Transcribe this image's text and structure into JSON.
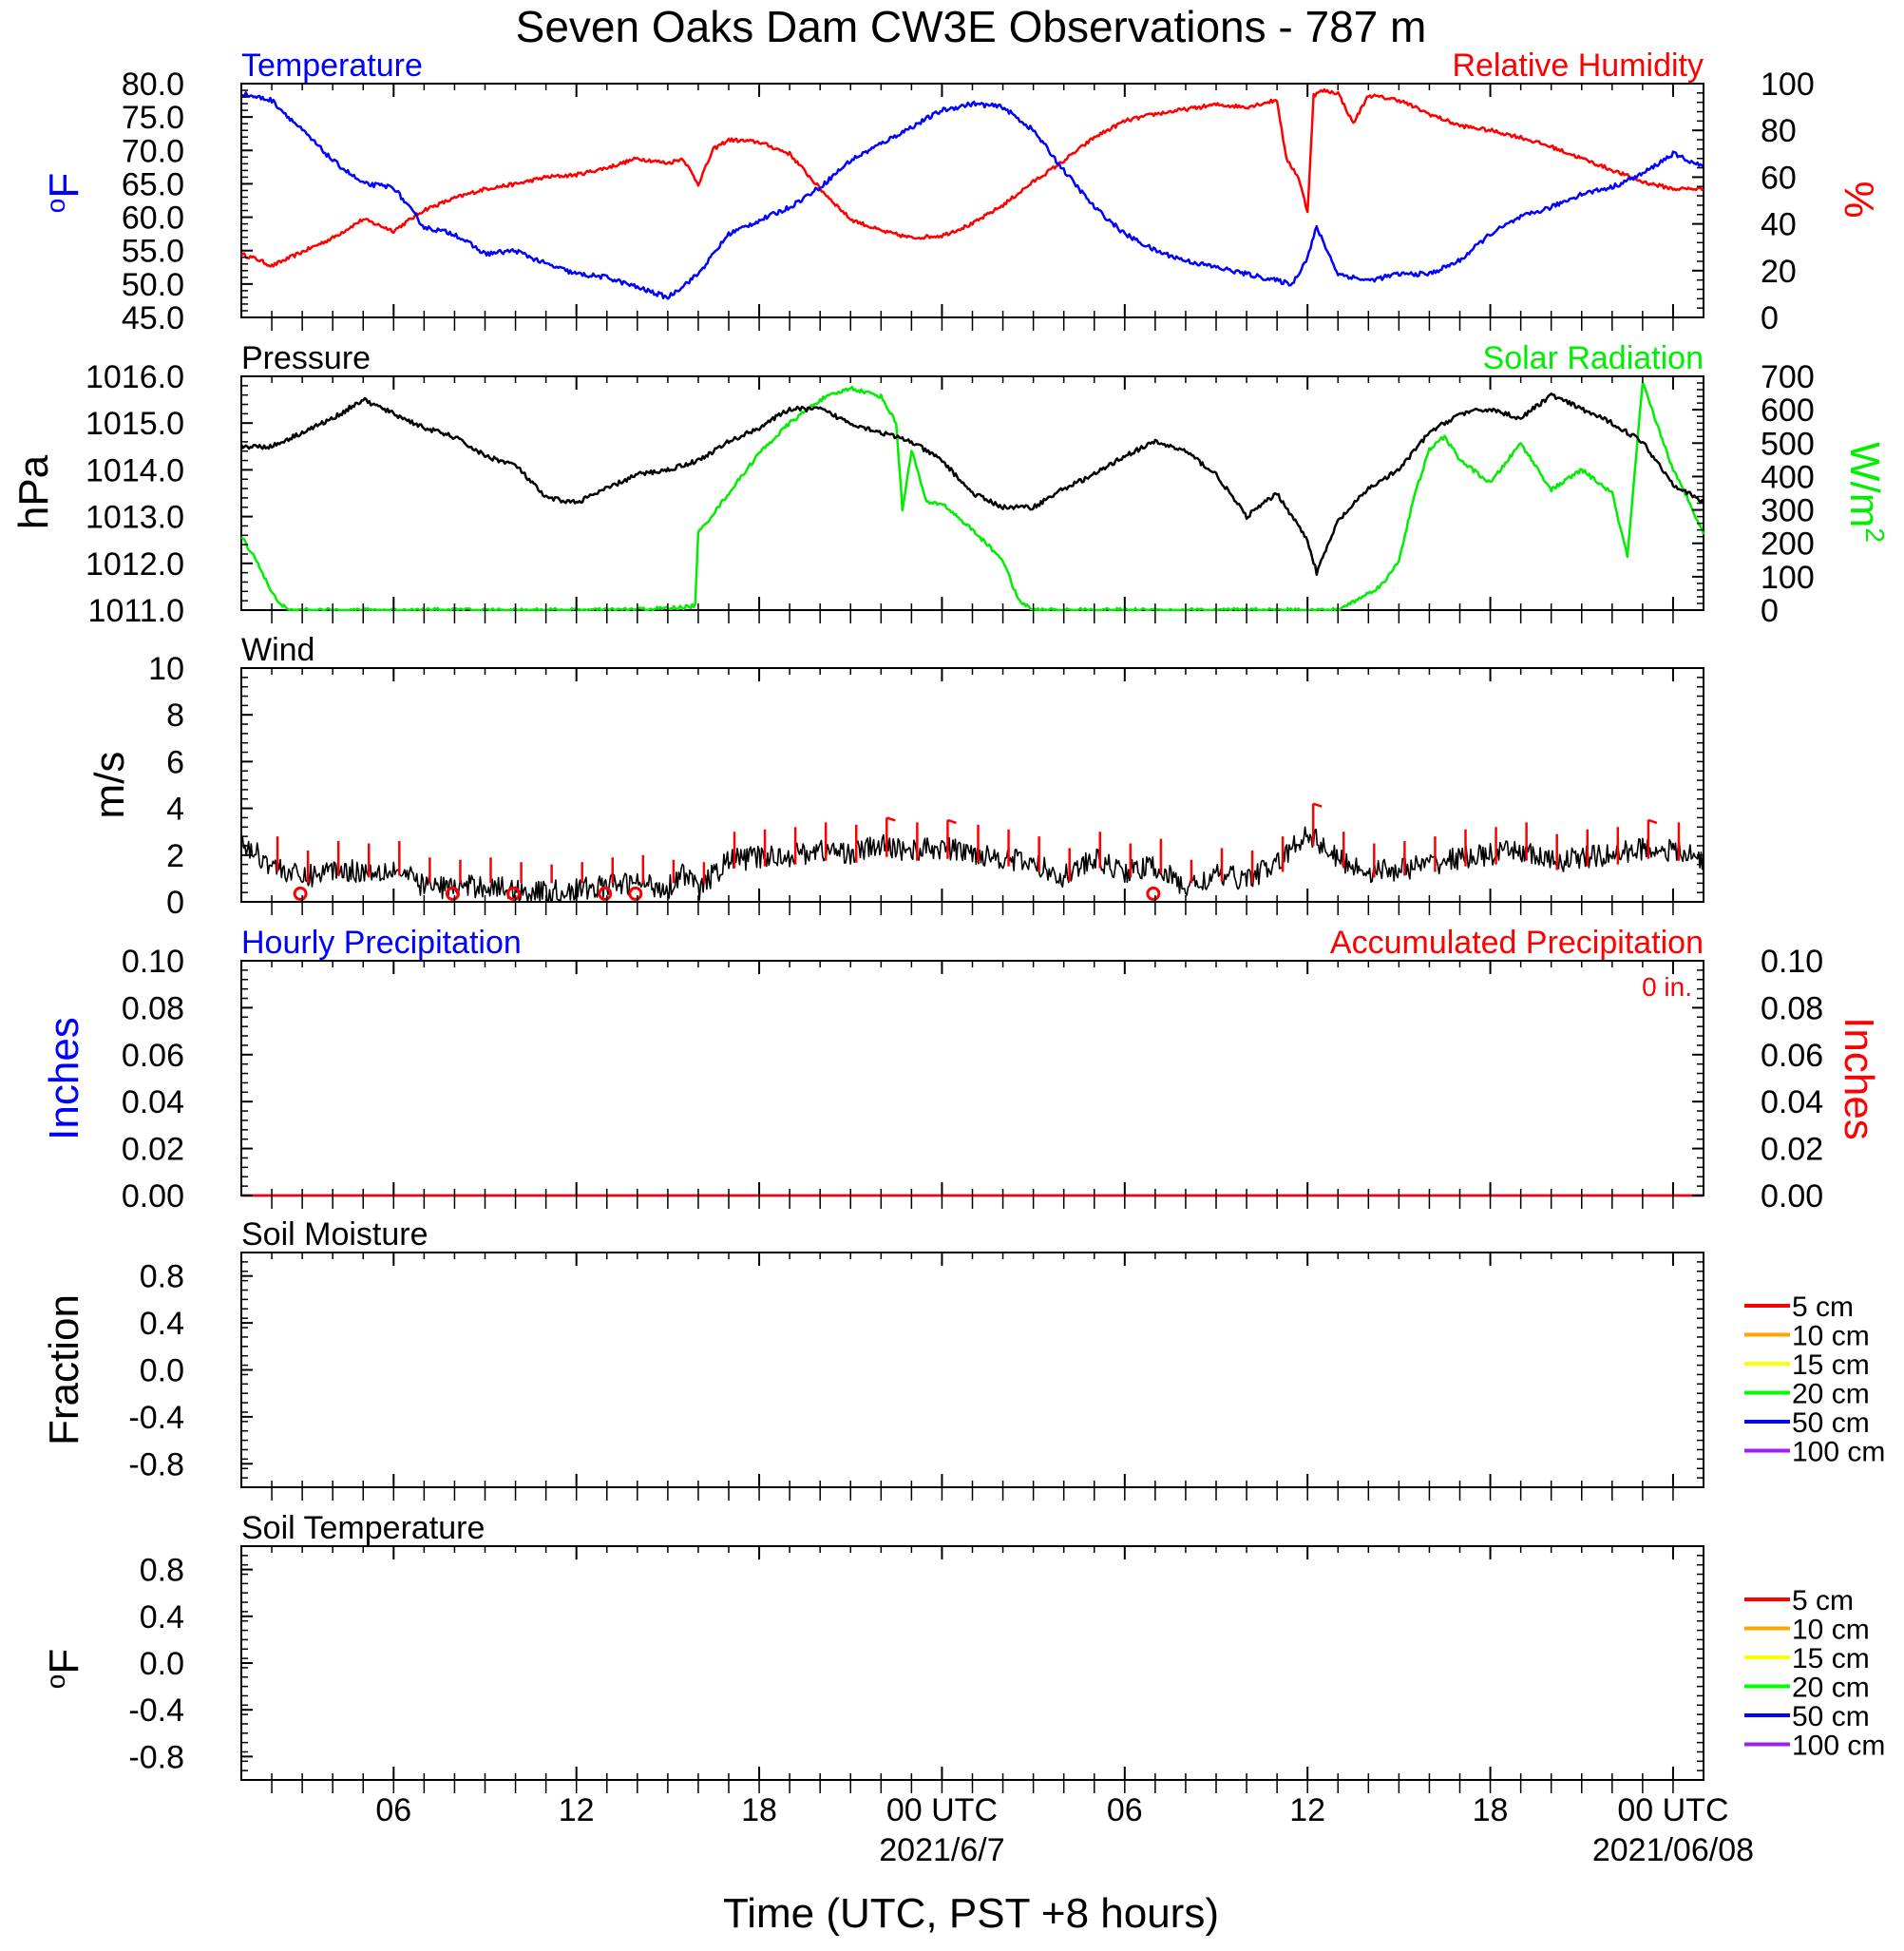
{
  "title": "Seven Oaks Dam CW3E Observations - 787 m",
  "time_axis": {
    "xlabel": "Time (UTC, PST +8 hours)",
    "tick_labels": [
      "06",
      "12",
      "18",
      "00 UTC",
      "06",
      "12",
      "18",
      "00 UTC"
    ],
    "date_labels": [
      "2021/6/7",
      "2021/06/08"
    ],
    "range_hours": [
      -23,
      25
    ]
  },
  "colors": {
    "temperature": "#0000ff",
    "humidity": "#ff0000",
    "pressure": "#000000",
    "solar": "#00ee00",
    "wind": "#000000",
    "wind_barb": "#ff0000",
    "hourly_precip": "#0000ff",
    "accum_precip": "#ff0000"
  },
  "panels": {
    "temp_rh": {
      "left_title": "Temperature",
      "right_title": "Relative Humidity",
      "left_unit": "oF",
      "right_unit": "%",
      "left_ticks": [
        "80.0",
        "75.0",
        "70.0",
        "65.0",
        "60.0",
        "55.0",
        "50.0",
        "45.0"
      ],
      "right_ticks": [
        "100",
        "80",
        "60",
        "40",
        "20",
        "0"
      ]
    },
    "pressure_solar": {
      "left_title": "Pressure",
      "right_title": "Solar Radiation",
      "left_unit": "hPa",
      "right_unit_main": "W/m",
      "right_unit_sup": "2",
      "left_ticks": [
        "1016.0",
        "1015.0",
        "1014.0",
        "1013.0",
        "1012.0",
        "1011.0"
      ],
      "right_ticks": [
        "700",
        "600",
        "500",
        "400",
        "300",
        "200",
        "100",
        "0"
      ]
    },
    "wind": {
      "left_title": "Wind",
      "left_unit": "m/s",
      "left_ticks": [
        "10",
        "8",
        "6",
        "4",
        "2",
        "0"
      ]
    },
    "precip": {
      "left_title": "Hourly Precipitation",
      "right_title": "Accumulated Precipitation",
      "accum_note": "0 in.",
      "left_unit": "Inches",
      "right_unit": "Inches",
      "left_ticks": [
        "0.10",
        "0.08",
        "0.06",
        "0.04",
        "0.02",
        "0.00"
      ],
      "right_ticks": [
        "0.10",
        "0.08",
        "0.06",
        "0.04",
        "0.02",
        "0.00"
      ]
    },
    "soil_moisture": {
      "left_title": "Soil Moisture",
      "left_unit": "Fraction",
      "left_ticks": [
        "0.8",
        "0.4",
        "0.0",
        "-0.4",
        "-0.8"
      ]
    },
    "soil_temperature": {
      "left_title": "Soil Temperature",
      "left_unit": "oF",
      "left_ticks": [
        "0.8",
        "0.4",
        "0.0",
        "-0.4",
        "-0.8"
      ]
    }
  },
  "soil_legend": [
    {
      "label": "5 cm",
      "color": "#ff0000"
    },
    {
      "label": "10 cm",
      "color": "#ffa500"
    },
    {
      "label": "15 cm",
      "color": "#ffff00"
    },
    {
      "label": "20 cm",
      "color": "#00ff00"
    },
    {
      "label": "50 cm",
      "color": "#0000ff"
    },
    {
      "label": "100 cm",
      "color": "#a020f0"
    }
  ],
  "chart_data": [
    {
      "type": "line",
      "title": "Temperature",
      "ylabel": "oF",
      "ylim": [
        45,
        80
      ],
      "x": [
        -23,
        -22,
        -21,
        -20,
        -19,
        -18,
        -17,
        -16,
        -15,
        -14,
        -13,
        -12,
        -11,
        -10,
        -9,
        -8,
        -7,
        -6,
        -5,
        -4,
        -3,
        -2,
        -1,
        0,
        1,
        2,
        3,
        4,
        5,
        6,
        7,
        8,
        9,
        10,
        11,
        11.5,
        12,
        12.3,
        13,
        14,
        15,
        16,
        17,
        18,
        19,
        20,
        21,
        22,
        23,
        24,
        25
      ],
      "series": [
        {
          "name": "Temperature",
          "values": [
            78.5,
            77.5,
            73,
            68.5,
            65,
            64.5,
            58.5,
            57.5,
            54.5,
            55,
            53,
            51.5,
            51,
            49.5,
            48,
            51.5,
            57.5,
            59.5,
            61.5,
            64.5,
            68.5,
            71,
            73.5,
            76,
            77,
            76.5,
            73,
            67,
            61.5,
            57.5,
            55,
            53.5,
            52.5,
            51.5,
            50.5,
            50,
            54,
            58.5,
            51.5,
            50.5,
            51.5,
            51.5,
            53.5,
            57.5,
            60,
            61.5,
            63.5,
            64.5,
            66.5,
            69.5,
            67.5
          ]
        }
      ]
    },
    {
      "type": "line",
      "title": "Relative Humidity",
      "ylabel": "%",
      "ylim": [
        0,
        100
      ],
      "x": [
        -23,
        -22.5,
        -22,
        -21,
        -20,
        -19,
        -18,
        -17,
        -16,
        -15,
        -14,
        -13,
        -12,
        -11,
        -10,
        -9,
        -8.5,
        -8,
        -7.5,
        -7,
        -6,
        -5,
        -4,
        -3,
        -2,
        -1,
        0,
        1,
        2,
        3,
        4,
        5,
        6,
        7,
        8,
        9,
        10,
        11,
        11.3,
        11.7,
        12,
        12.2,
        12.5,
        13,
        13.5,
        14,
        15,
        16,
        17,
        18,
        19,
        20,
        21,
        22,
        23,
        24,
        25
      ],
      "series": [
        {
          "name": "Relative Humidity",
          "values": [
            27,
            25,
            22,
            28,
            34,
            42,
            37,
            46,
            51,
            55,
            57,
            60,
            61,
            64,
            68,
            66,
            68,
            57,
            72,
            76,
            75,
            70,
            55,
            42,
            37,
            34,
            35,
            40,
            48,
            58,
            67,
            77,
            84,
            87,
            89,
            91,
            90,
            93,
            68,
            60,
            45,
            95,
            97,
            96,
            83,
            95,
            93,
            87,
            82,
            80,
            77,
            73,
            68,
            63,
            58,
            55,
            55
          ]
        }
      ]
    },
    {
      "type": "line",
      "title": "Pressure",
      "ylabel": "hPa",
      "ylim": [
        1011,
        1016
      ],
      "x": [
        -23,
        -22,
        -21,
        -20,
        -19,
        -18,
        -17,
        -16,
        -15,
        -14,
        -13,
        -12,
        -11,
        -10,
        -9,
        -8,
        -7,
        -6,
        -5,
        -4,
        -3,
        -2,
        -1,
        0,
        1,
        2,
        3,
        4,
        5,
        6,
        7,
        8,
        9,
        10,
        11,
        11.5,
        12,
        12.3,
        13,
        14,
        15,
        16,
        17,
        18,
        19,
        20,
        21,
        22,
        23,
        24,
        25
      ],
      "series": [
        {
          "name": "Pressure",
          "values": [
            1014.5,
            1014.5,
            1014.8,
            1015.1,
            1015.5,
            1015.2,
            1014.9,
            1014.7,
            1014.3,
            1014.1,
            1013.4,
            1013.3,
            1013.6,
            1013.9,
            1014.0,
            1014.2,
            1014.6,
            1014.9,
            1015.3,
            1015.3,
            1015.0,
            1014.8,
            1014.6,
            1014.2,
            1013.5,
            1013.2,
            1013.2,
            1013.6,
            1013.9,
            1014.3,
            1014.6,
            1014.4,
            1013.9,
            1013.0,
            1013.5,
            1013.0,
            1012.5,
            1011.8,
            1012.9,
            1013.6,
            1014.0,
            1014.8,
            1015.2,
            1015.3,
            1015.1,
            1015.6,
            1015.3,
            1015.0,
            1014.6,
            1013.7,
            1013.3
          ]
        }
      ]
    },
    {
      "type": "line",
      "title": "Solar Radiation",
      "ylabel": "W/m2",
      "ylim": [
        0,
        700
      ],
      "x": [
        -23,
        -22.5,
        -22,
        -21.5,
        -21,
        -20,
        -18,
        -16,
        -14,
        -11,
        -9,
        -8.3,
        -8.1,
        -8,
        -7,
        -6,
        -5,
        -4,
        -3,
        -2,
        -1.5,
        -1.3,
        -1,
        -0.5,
        0,
        1,
        2,
        2.5,
        3,
        5,
        8,
        10,
        11,
        12,
        13,
        14,
        14.5,
        15,
        15.5,
        16,
        16.5,
        17,
        18,
        19,
        20,
        21,
        22,
        22.5,
        23,
        24,
        24.5,
        25
      ],
      "series": [
        {
          "name": "Solar Radiation",
          "values": [
            220,
            150,
            50,
            0,
            0,
            0,
            0,
            0,
            0,
            0,
            5,
            10,
            15,
            230,
            350,
            470,
            560,
            630,
            665,
            640,
            560,
            300,
            480,
            320,
            320,
            240,
            150,
            30,
            0,
            0,
            0,
            0,
            0,
            0,
            0,
            50,
            80,
            150,
            340,
            480,
            520,
            450,
            380,
            500,
            360,
            420,
            350,
            160,
            680,
            420,
            330,
            230
          ]
        }
      ]
    },
    {
      "type": "line",
      "title": "Wind",
      "ylabel": "m/s",
      "ylim": [
        0,
        10
      ],
      "x": [
        -23,
        -22,
        -21,
        -20,
        -19,
        -18,
        -17,
        -16,
        -15,
        -14,
        -13,
        -12,
        -11,
        -10,
        -9,
        -8.5,
        -8,
        -7,
        -6,
        -5,
        -4,
        -3,
        -2,
        -1,
        0,
        1,
        2,
        3,
        4,
        5,
        6,
        7,
        8,
        9,
        10,
        11,
        12,
        13,
        14,
        15,
        16,
        17,
        18,
        19,
        20,
        21,
        22,
        23,
        24,
        25
      ],
      "series": [
        {
          "name": "Wind speed",
          "values": [
            2.5,
            1.6,
            1.0,
            1.4,
            1.3,
            1.4,
            0.7,
            0.6,
            0.7,
            0.5,
            0.4,
            0.5,
            0.7,
            0.8,
            0.6,
            1.3,
            0.5,
            1.8,
            1.9,
            2.0,
            2.2,
            2.1,
            2.4,
            2.2,
            2.3,
            2.1,
            1.9,
            1.6,
            1.1,
            1.8,
            1.3,
            1.5,
            0.6,
            1.1,
            1.0,
            1.6,
            3.0,
            1.8,
            1.3,
            1.4,
            1.6,
            1.9,
            2.0,
            2.2,
            1.7,
            1.9,
            2.0,
            2.3,
            2.2,
            1.8
          ]
        }
      ],
      "calm_markers_x": [
        -21,
        -16,
        -14,
        -11,
        -10,
        7
      ]
    },
    {
      "type": "line",
      "title": "Hourly Precipitation",
      "ylabel": "Inches",
      "ylim": [
        0,
        0.1
      ],
      "x": [
        -23,
        25
      ],
      "series": [
        {
          "name": "Hourly Precipitation",
          "values": [
            0,
            0
          ]
        },
        {
          "name": "Accumulated Precipitation",
          "values": [
            0,
            0
          ]
        }
      ]
    },
    {
      "type": "line",
      "title": "Soil Moisture",
      "ylabel": "Fraction",
      "ylim": [
        -1,
        1
      ],
      "series": []
    },
    {
      "type": "line",
      "title": "Soil Temperature",
      "ylabel": "oF",
      "ylim": [
        -1,
        1
      ],
      "series": []
    }
  ]
}
